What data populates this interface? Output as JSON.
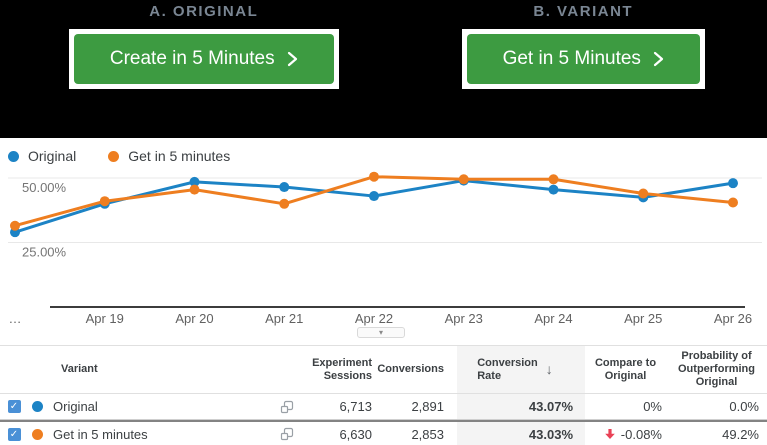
{
  "colors": {
    "blue": "#1c83c5",
    "orange": "#ee7e20",
    "green": "#3d9b41",
    "red": "#e94256",
    "checkbox_blue": "#4a90d6",
    "title_gray": "#7a8693"
  },
  "icons": {
    "check": "✓",
    "sort_down": "↓",
    "dropdown": "▾"
  },
  "hero": {
    "original": {
      "label": "A. ORIGINAL",
      "button": "Create in 5 Minutes"
    },
    "variant": {
      "label": "B. VARIANT",
      "button": "Get in 5 Minutes"
    }
  },
  "chart_data": {
    "type": "line",
    "categories": [
      "…",
      "Apr 19",
      "Apr 20",
      "Apr 21",
      "Apr 22",
      "Apr 23",
      "Apr 24",
      "Apr 25",
      "Apr 26"
    ],
    "series": [
      {
        "name": "Original",
        "color": "#1c83c5",
        "values": [
          29,
          40,
          48.5,
          46.5,
          43,
          49,
          45.5,
          42.5,
          48
        ]
      },
      {
        "name": "Get in 5 minutes",
        "color": "#ee7e20",
        "values": [
          31.5,
          41,
          45.5,
          40,
          50.5,
          49.5,
          49.5,
          44,
          40.5
        ]
      }
    ],
    "y_ticks": [
      {
        "value": 50,
        "label": "50.00%"
      },
      {
        "value": 25,
        "label": "25.00%"
      }
    ],
    "ylabel": "Conversion Rate",
    "ylim": [
      0,
      55
    ],
    "grid": "horizontal",
    "legend_position": "top-left"
  },
  "table": {
    "columns": {
      "variant": "Variant",
      "sessions": "Experiment\nSessions",
      "conversions": "Conversions",
      "rate": "Conversion\nRate",
      "compare": "Compare to\nOriginal",
      "probability": "Probability of\nOutperforming\nOriginal"
    },
    "rows": [
      {
        "variant": "Original",
        "dot_color": "#1c83c5",
        "checked": true,
        "sessions": "6,713",
        "conversions": "2,891",
        "rate": "43.07%",
        "compare": "0%",
        "compare_down": false,
        "probability": "0.0%"
      },
      {
        "variant": "Get in 5 minutes",
        "dot_color": "#ee7e20",
        "checked": true,
        "sessions": "6,630",
        "conversions": "2,853",
        "rate": "43.03%",
        "compare": "-0.08%",
        "compare_down": true,
        "probability": "49.2%"
      }
    ]
  }
}
